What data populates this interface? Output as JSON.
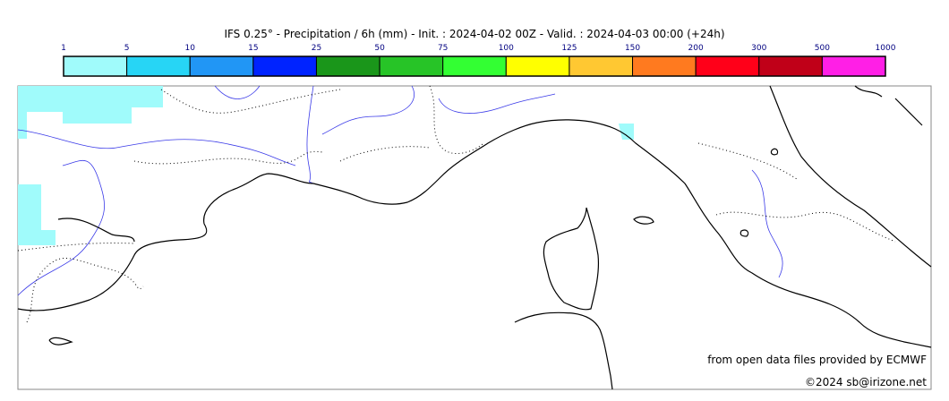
{
  "title": "IFS 0.25° - Precipitation / 6h (mm) - Init. : 2024-04-02 00Z - Valid. : 2024-04-03 00:00 (+24h)",
  "colorbar": {
    "bounds": [
      1,
      5,
      10,
      15,
      25,
      50,
      75,
      100,
      125,
      150,
      200,
      300,
      500,
      1000
    ],
    "colors": [
      "#a0fbfb",
      "#27d5f5",
      "#2196f5",
      "#0023ff",
      "#1a961a",
      "#27c427",
      "#33ff33",
      "#ffff00",
      "#ffc832",
      "#ff7a1f",
      "#ff0019",
      "#c00018",
      "#ff1fe6"
    ]
  },
  "credits": {
    "source": "from open data files provided by ECMWF",
    "author": "©2024 sb@irizone.net"
  }
}
